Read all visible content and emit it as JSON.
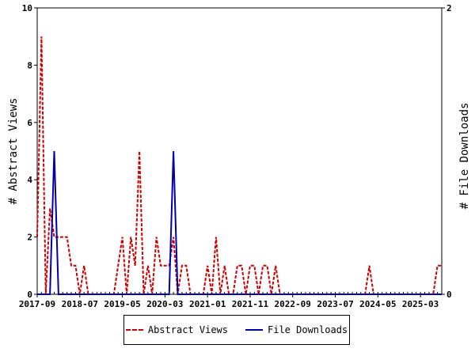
{
  "chart_data": {
    "type": "line",
    "title": "",
    "ylabel": "# Abstract Views",
    "y2label": "# File Downloads",
    "ylim": [
      0,
      10
    ],
    "y2lim": [
      0,
      2
    ],
    "yticks": [
      0,
      2,
      4,
      6,
      8,
      10
    ],
    "y2ticks": [
      0,
      2
    ],
    "xlim": [
      "2017-09",
      "2025-08"
    ],
    "xticks": [
      "2017-09",
      "2018-07",
      "2019-05",
      "2020-03",
      "2021-01",
      "2021-11",
      "2022-09",
      "2023-07",
      "2024-05",
      "2025-03"
    ],
    "legend_position": "bottom",
    "series": [
      {
        "name": "Abstract Views",
        "axis": "left",
        "color": "#cc0000",
        "style": "dashed",
        "points": [
          [
            "2017-09",
            2
          ],
          [
            "2017-10",
            9
          ],
          [
            "2017-11",
            0
          ],
          [
            "2017-12",
            3
          ],
          [
            "2018-01",
            2
          ],
          [
            "2018-02",
            2
          ],
          [
            "2018-03",
            2
          ],
          [
            "2018-04",
            2
          ],
          [
            "2018-05",
            1
          ],
          [
            "2018-06",
            1
          ],
          [
            "2018-07",
            0
          ],
          [
            "2018-08",
            1
          ],
          [
            "2018-09",
            0
          ],
          [
            "2018-10",
            0
          ],
          [
            "2018-11",
            0
          ],
          [
            "2018-12",
            0
          ],
          [
            "2019-01",
            0
          ],
          [
            "2019-02",
            0
          ],
          [
            "2019-03",
            0
          ],
          [
            "2019-04",
            1
          ],
          [
            "2019-05",
            2
          ],
          [
            "2019-06",
            0
          ],
          [
            "2019-07",
            2
          ],
          [
            "2019-08",
            1
          ],
          [
            "2019-09",
            5
          ],
          [
            "2019-10",
            0
          ],
          [
            "2019-11",
            1
          ],
          [
            "2019-12",
            0
          ],
          [
            "2020-01",
            2
          ],
          [
            "2020-02",
            1
          ],
          [
            "2020-03",
            1
          ],
          [
            "2020-04",
            1
          ],
          [
            "2020-05",
            2
          ],
          [
            "2020-06",
            0
          ],
          [
            "2020-07",
            1
          ],
          [
            "2020-08",
            1
          ],
          [
            "2020-09",
            0
          ],
          [
            "2020-10",
            0
          ],
          [
            "2020-11",
            0
          ],
          [
            "2020-12",
            0
          ],
          [
            "2021-01",
            1
          ],
          [
            "2021-02",
            0
          ],
          [
            "2021-03",
            2
          ],
          [
            "2021-04",
            0
          ],
          [
            "2021-05",
            1
          ],
          [
            "2021-06",
            0
          ],
          [
            "2021-07",
            0
          ],
          [
            "2021-08",
            1
          ],
          [
            "2021-09",
            1
          ],
          [
            "2021-10",
            0
          ],
          [
            "2021-11",
            1
          ],
          [
            "2021-12",
            1
          ],
          [
            "2022-01",
            0
          ],
          [
            "2022-02",
            1
          ],
          [
            "2022-03",
            1
          ],
          [
            "2022-04",
            0
          ],
          [
            "2022-05",
            1
          ],
          [
            "2022-06",
            0
          ],
          [
            "2022-07",
            0
          ],
          [
            "2022-08",
            0
          ],
          [
            "2022-09",
            0
          ],
          [
            "2022-10",
            0
          ],
          [
            "2022-11",
            0
          ],
          [
            "2022-12",
            0
          ],
          [
            "2023-01",
            0
          ],
          [
            "2023-02",
            0
          ],
          [
            "2023-03",
            0
          ],
          [
            "2023-04",
            0
          ],
          [
            "2023-05",
            0
          ],
          [
            "2023-06",
            0
          ],
          [
            "2023-07",
            0
          ],
          [
            "2023-08",
            0
          ],
          [
            "2023-09",
            0
          ],
          [
            "2023-10",
            0
          ],
          [
            "2023-11",
            0
          ],
          [
            "2023-12",
            0
          ],
          [
            "2024-01",
            0
          ],
          [
            "2024-02",
            0
          ],
          [
            "2024-03",
            1
          ],
          [
            "2024-04",
            0
          ],
          [
            "2024-05",
            0
          ],
          [
            "2024-06",
            0
          ],
          [
            "2024-07",
            0
          ],
          [
            "2024-08",
            0
          ],
          [
            "2024-09",
            0
          ],
          [
            "2024-10",
            0
          ],
          [
            "2024-11",
            0
          ],
          [
            "2024-12",
            0
          ],
          [
            "2025-01",
            0
          ],
          [
            "2025-02",
            0
          ],
          [
            "2025-03",
            0
          ],
          [
            "2025-04",
            0
          ],
          [
            "2025-05",
            0
          ],
          [
            "2025-06",
            0
          ],
          [
            "2025-07",
            1
          ],
          [
            "2025-08",
            1
          ]
        ]
      },
      {
        "name": "File Downloads",
        "axis": "right",
        "color": "#0000aa",
        "style": "solid",
        "points": [
          [
            "2017-09",
            0
          ],
          [
            "2017-10",
            0
          ],
          [
            "2017-11",
            0
          ],
          [
            "2017-12",
            0
          ],
          [
            "2018-01",
            1
          ],
          [
            "2018-02",
            0
          ],
          [
            "2018-03",
            0
          ],
          [
            "2018-04",
            0
          ],
          [
            "2018-05",
            0
          ],
          [
            "2018-06",
            0
          ],
          [
            "2018-07",
            0
          ],
          [
            "2018-08",
            0
          ],
          [
            "2018-09",
            0
          ],
          [
            "2018-10",
            0
          ],
          [
            "2018-11",
            0
          ],
          [
            "2018-12",
            0
          ],
          [
            "2019-01",
            0
          ],
          [
            "2019-02",
            0
          ],
          [
            "2019-03",
            0
          ],
          [
            "2019-04",
            0
          ],
          [
            "2019-05",
            0
          ],
          [
            "2019-06",
            0
          ],
          [
            "2019-07",
            0
          ],
          [
            "2019-08",
            0
          ],
          [
            "2019-09",
            0
          ],
          [
            "2019-10",
            0
          ],
          [
            "2019-11",
            0
          ],
          [
            "2019-12",
            0
          ],
          [
            "2020-01",
            0
          ],
          [
            "2020-02",
            0
          ],
          [
            "2020-03",
            0
          ],
          [
            "2020-04",
            0
          ],
          [
            "2020-05",
            1
          ],
          [
            "2020-06",
            0
          ],
          [
            "2020-07",
            0
          ],
          [
            "2020-08",
            0
          ],
          [
            "2020-09",
            0
          ],
          [
            "2020-10",
            0
          ],
          [
            "2020-11",
            0
          ],
          [
            "2020-12",
            0
          ],
          [
            "2021-01",
            0
          ],
          [
            "2021-02",
            0
          ],
          [
            "2021-03",
            0
          ],
          [
            "2021-04",
            0
          ],
          [
            "2021-05",
            0
          ],
          [
            "2021-06",
            0
          ],
          [
            "2021-07",
            0
          ],
          [
            "2021-08",
            0
          ],
          [
            "2021-09",
            0
          ],
          [
            "2021-10",
            0
          ],
          [
            "2021-11",
            0
          ],
          [
            "2021-12",
            0
          ],
          [
            "2022-01",
            0
          ],
          [
            "2022-02",
            0
          ],
          [
            "2022-03",
            0
          ],
          [
            "2022-04",
            0
          ],
          [
            "2022-05",
            0
          ],
          [
            "2022-06",
            0
          ],
          [
            "2022-07",
            0
          ],
          [
            "2022-08",
            0
          ],
          [
            "2022-09",
            0
          ],
          [
            "2022-10",
            0
          ],
          [
            "2022-11",
            0
          ],
          [
            "2022-12",
            0
          ],
          [
            "2023-01",
            0
          ],
          [
            "2023-02",
            0
          ],
          [
            "2023-03",
            0
          ],
          [
            "2023-04",
            0
          ],
          [
            "2023-05",
            0
          ],
          [
            "2023-06",
            0
          ],
          [
            "2023-07",
            0
          ],
          [
            "2023-08",
            0
          ],
          [
            "2023-09",
            0
          ],
          [
            "2023-10",
            0
          ],
          [
            "2023-11",
            0
          ],
          [
            "2023-12",
            0
          ],
          [
            "2024-01",
            0
          ],
          [
            "2024-02",
            0
          ],
          [
            "2024-03",
            0
          ],
          [
            "2024-04",
            0
          ],
          [
            "2024-05",
            0
          ],
          [
            "2024-06",
            0
          ],
          [
            "2024-07",
            0
          ],
          [
            "2024-08",
            0
          ],
          [
            "2024-09",
            0
          ],
          [
            "2024-10",
            0
          ],
          [
            "2024-11",
            0
          ],
          [
            "2024-12",
            0
          ],
          [
            "2025-01",
            0
          ],
          [
            "2025-02",
            0
          ],
          [
            "2025-03",
            0
          ],
          [
            "2025-04",
            0
          ],
          [
            "2025-05",
            0
          ],
          [
            "2025-06",
            0
          ],
          [
            "2025-07",
            0
          ],
          [
            "2025-08",
            0
          ]
        ]
      }
    ]
  }
}
